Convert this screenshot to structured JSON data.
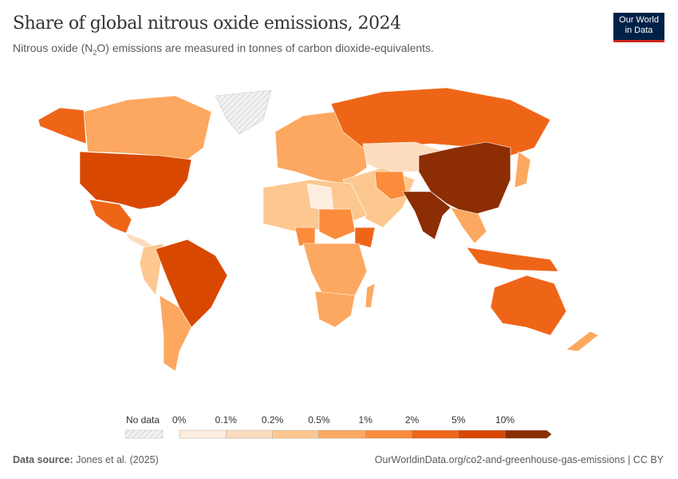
{
  "header": {
    "title": "Share of global nitrous oxide emissions, 2024",
    "subtitle_pre": "Nitrous oxide (N",
    "subtitle_sub": "2",
    "subtitle_post": "O) emissions are measured in tonnes of carbon dioxide-equivalents.",
    "logo_line1": "Our World",
    "logo_line2": "in Data"
  },
  "legend": {
    "no_data": "No data",
    "bins": [
      "0%",
      "0.1%",
      "0.2%",
      "0.5%",
      "1%",
      "2%",
      "5%",
      "10%"
    ],
    "colors": [
      "#feeee0",
      "#fddcbd",
      "#fcc890",
      "#fca860",
      "#fb8c3c",
      "#ef6518",
      "#d94801",
      "#8c2d04"
    ]
  },
  "footer": {
    "source_label": "Data source:",
    "source": "Jones et al. (2025)",
    "url": "OurWorldinData.org/co2-and-greenhouse-gas-emissions | CC BY"
  }
}
